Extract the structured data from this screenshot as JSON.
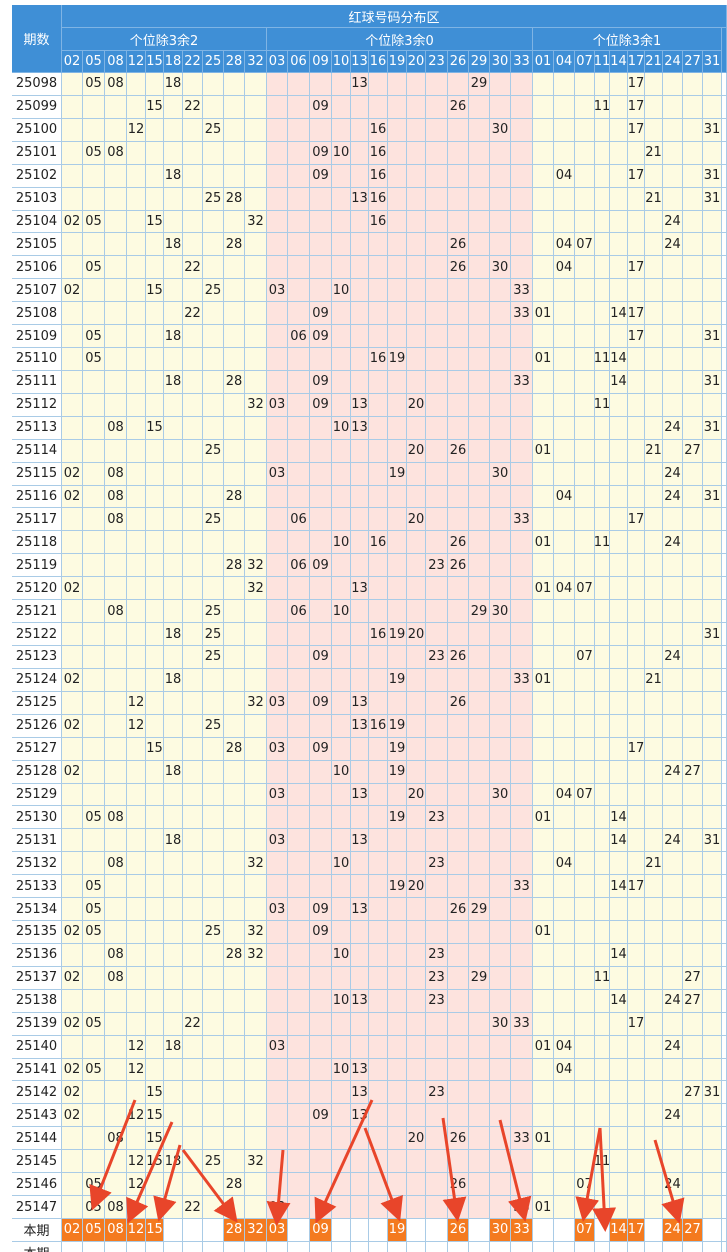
{
  "header": {
    "title": "红球号码分布区",
    "period_label": "期数",
    "groups": [
      {
        "label": "个位除3余2",
        "numbers": [
          "02",
          "05",
          "08",
          "12",
          "15",
          "18",
          "22",
          "25",
          "28",
          "32"
        ]
      },
      {
        "label": "个位除3余0",
        "numbers": [
          "03",
          "06",
          "09",
          "10",
          "13",
          "16",
          "19",
          "20",
          "23",
          "26",
          "29",
          "30",
          "33"
        ]
      },
      {
        "label": "个位除3余1",
        "numbers": [
          "01",
          "04",
          "07",
          "11",
          "14",
          "17",
          "21",
          "24",
          "27",
          "31"
        ]
      }
    ]
  },
  "rows": [
    {
      "period": "25098",
      "numbers": [
        "05",
        "08",
        "18",
        "13",
        "29",
        "17"
      ]
    },
    {
      "period": "25099",
      "numbers": [
        "15",
        "22",
        "09",
        "26",
        "11",
        "17"
      ]
    },
    {
      "period": "25100",
      "numbers": [
        "12",
        "25",
        "16",
        "30",
        "17",
        "31"
      ]
    },
    {
      "period": "25101",
      "numbers": [
        "05",
        "08",
        "09",
        "10",
        "16",
        "21"
      ]
    },
    {
      "period": "25102",
      "numbers": [
        "18",
        "09",
        "16",
        "04",
        "17",
        "31"
      ]
    },
    {
      "period": "25103",
      "numbers": [
        "25",
        "28",
        "13",
        "16",
        "21",
        "31"
      ]
    },
    {
      "period": "25104",
      "numbers": [
        "02",
        "05",
        "15",
        "32",
        "16",
        "24"
      ]
    },
    {
      "period": "25105",
      "numbers": [
        "18",
        "28",
        "26",
        "04",
        "07",
        "24"
      ]
    },
    {
      "period": "25106",
      "numbers": [
        "05",
        "22",
        "26",
        "30",
        "04",
        "17"
      ]
    },
    {
      "period": "25107",
      "numbers": [
        "02",
        "15",
        "25",
        "03",
        "10",
        "33"
      ]
    },
    {
      "period": "25108",
      "numbers": [
        "22",
        "09",
        "33",
        "01",
        "14",
        "17"
      ]
    },
    {
      "period": "25109",
      "numbers": [
        "05",
        "18",
        "06",
        "09",
        "17",
        "31"
      ]
    },
    {
      "period": "25110",
      "numbers": [
        "05",
        "16",
        "19",
        "01",
        "11",
        "14"
      ]
    },
    {
      "period": "25111",
      "numbers": [
        "18",
        "28",
        "09",
        "33",
        "14",
        "31"
      ]
    },
    {
      "period": "25112",
      "numbers": [
        "32",
        "03",
        "09",
        "13",
        "20",
        "11"
      ]
    },
    {
      "period": "25113",
      "numbers": [
        "08",
        "15",
        "10",
        "13",
        "24",
        "31"
      ]
    },
    {
      "period": "25114",
      "numbers": [
        "25",
        "20",
        "26",
        "01",
        "21",
        "27"
      ]
    },
    {
      "period": "25115",
      "numbers": [
        "02",
        "08",
        "03",
        "19",
        "30",
        "24"
      ]
    },
    {
      "period": "25116",
      "numbers": [
        "02",
        "08",
        "28",
        "04",
        "24",
        "31"
      ]
    },
    {
      "period": "25117",
      "numbers": [
        "08",
        "25",
        "06",
        "20",
        "33",
        "17"
      ]
    },
    {
      "period": "25118",
      "numbers": [
        "10",
        "16",
        "26",
        "01",
        "11",
        "24"
      ]
    },
    {
      "period": "25119",
      "numbers": [
        "28",
        "32",
        "06",
        "09",
        "23",
        "26"
      ]
    },
    {
      "period": "25120",
      "numbers": [
        "02",
        "32",
        "13",
        "01",
        "04",
        "07"
      ]
    },
    {
      "period": "25121",
      "numbers": [
        "08",
        "25",
        "06",
        "10",
        "29",
        "30"
      ]
    },
    {
      "period": "25122",
      "numbers": [
        "18",
        "25",
        "16",
        "19",
        "20",
        "31"
      ]
    },
    {
      "period": "25123",
      "numbers": [
        "25",
        "09",
        "23",
        "26",
        "07",
        "24"
      ]
    },
    {
      "period": "25124",
      "numbers": [
        "02",
        "18",
        "19",
        "33",
        "01",
        "21"
      ]
    },
    {
      "period": "25125",
      "numbers": [
        "12",
        "32",
        "03",
        "09",
        "13",
        "26"
      ]
    },
    {
      "period": "25126",
      "numbers": [
        "02",
        "12",
        "25",
        "13",
        "16",
        "19"
      ]
    },
    {
      "period": "25127",
      "numbers": [
        "15",
        "28",
        "03",
        "09",
        "19",
        "17"
      ]
    },
    {
      "period": "25128",
      "numbers": [
        "02",
        "18",
        "10",
        "19",
        "24",
        "27"
      ]
    },
    {
      "period": "25129",
      "numbers": [
        "03",
        "13",
        "20",
        "30",
        "04",
        "07"
      ]
    },
    {
      "period": "25130",
      "numbers": [
        "05",
        "08",
        "19",
        "23",
        "01",
        "14"
      ]
    },
    {
      "period": "25131",
      "numbers": [
        "18",
        "03",
        "13",
        "14",
        "24",
        "31"
      ]
    },
    {
      "period": "25132",
      "numbers": [
        "08",
        "32",
        "10",
        "23",
        "04",
        "21"
      ]
    },
    {
      "period": "25133",
      "numbers": [
        "05",
        "19",
        "20",
        "33",
        "14",
        "17"
      ]
    },
    {
      "period": "25134",
      "numbers": [
        "05",
        "03",
        "09",
        "13",
        "26",
        "29"
      ]
    },
    {
      "period": "25135",
      "numbers": [
        "02",
        "05",
        "25",
        "32",
        "09",
        "01"
      ]
    },
    {
      "period": "25136",
      "numbers": [
        "08",
        "28",
        "32",
        "10",
        "23",
        "14"
      ]
    },
    {
      "period": "25137",
      "numbers": [
        "02",
        "08",
        "23",
        "29",
        "11",
        "27"
      ]
    },
    {
      "period": "25138",
      "numbers": [
        "10",
        "13",
        "23",
        "14",
        "24",
        "27"
      ]
    },
    {
      "period": "25139",
      "numbers": [
        "02",
        "05",
        "22",
        "30",
        "33",
        "17"
      ]
    },
    {
      "period": "25140",
      "numbers": [
        "12",
        "18",
        "03",
        "01",
        "04",
        "24"
      ]
    },
    {
      "period": "25141",
      "numbers": [
        "02",
        "05",
        "12",
        "10",
        "13",
        "04"
      ]
    },
    {
      "period": "25142",
      "numbers": [
        "02",
        "15",
        "13",
        "23",
        "27",
        "31"
      ]
    },
    {
      "period": "25143",
      "numbers": [
        "02",
        "12",
        "15",
        "09",
        "13",
        "24"
      ]
    },
    {
      "period": "25144",
      "numbers": [
        "08",
        "15",
        "20",
        "26",
        "33",
        "01"
      ]
    },
    {
      "period": "25145",
      "numbers": [
        "12",
        "15",
        "18",
        "25",
        "32",
        "11"
      ]
    },
    {
      "period": "25146",
      "numbers": [
        "05",
        "12",
        "28",
        "26",
        "07",
        "24"
      ]
    },
    {
      "period": "25147",
      "numbers": [
        "05",
        "08",
        "22",
        "03",
        "33",
        "01"
      ]
    }
  ],
  "current": {
    "label": "本期",
    "numbers": [
      "02",
      "05",
      "08",
      "12",
      "15",
      "28",
      "32",
      "03",
      "09",
      "19",
      "26",
      "30",
      "33",
      "07",
      "14",
      "17",
      "24",
      "27"
    ]
  },
  "next_label": "本期"
}
